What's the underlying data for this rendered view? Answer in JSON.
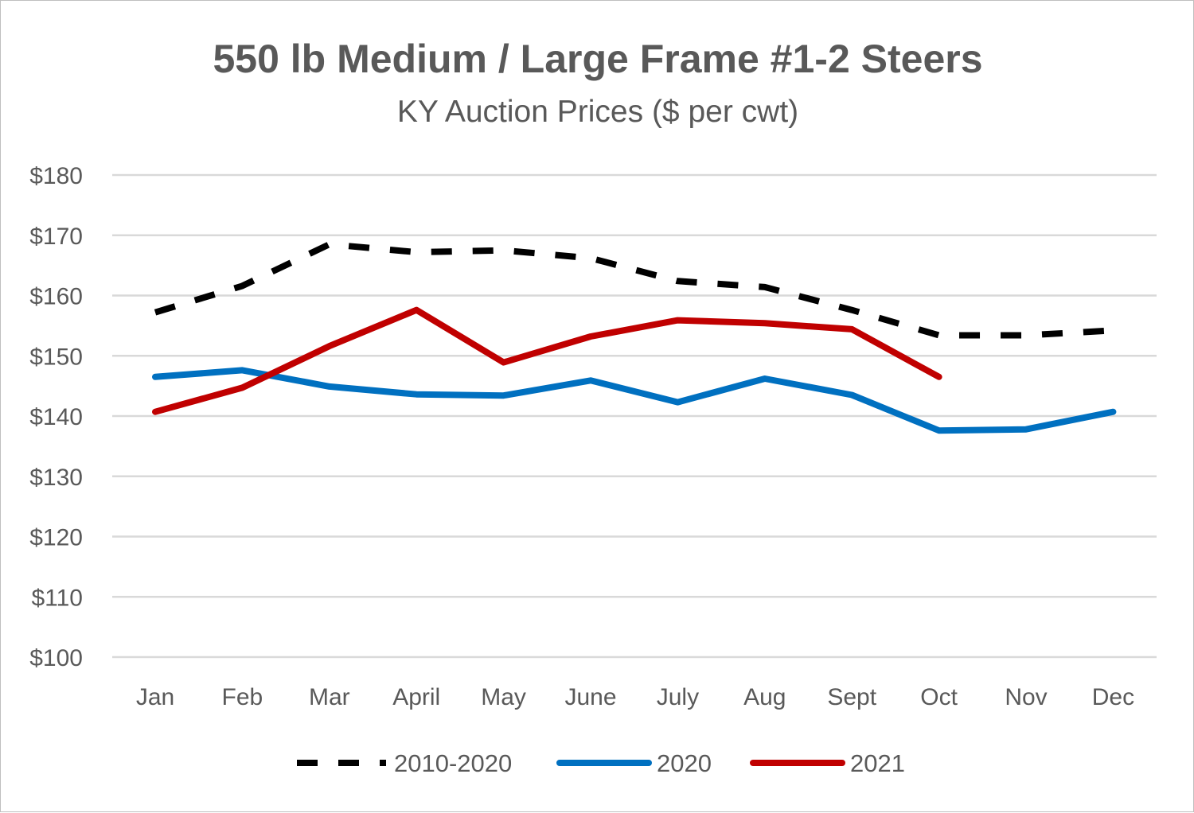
{
  "chart_data": {
    "type": "line",
    "title": "550 lb Medium / Large Frame #1-2 Steers",
    "subtitle": "KY Auction Prices ($ per cwt)",
    "xlabel": "",
    "ylabel": "",
    "categories": [
      "Jan",
      "Feb",
      "Mar",
      "April",
      "May",
      "June",
      "July",
      "Aug",
      "Sept",
      "Oct",
      "Nov",
      "Dec"
    ],
    "ylim": [
      100,
      180
    ],
    "yticks": [
      100,
      110,
      120,
      130,
      140,
      150,
      160,
      170,
      180
    ],
    "ytick_labels": [
      "$100",
      "$110",
      "$120",
      "$130",
      "$140",
      "$150",
      "$160",
      "$170",
      "$180"
    ],
    "grid": true,
    "legend_position": "bottom",
    "series": [
      {
        "name": "2010-2020",
        "color": "#000000",
        "style": "dashed",
        "values": [
          157.2,
          161.6,
          168.5,
          167.2,
          167.5,
          166.2,
          162.4,
          161.4,
          157.6,
          153.4,
          153.4,
          154.2
        ]
      },
      {
        "name": "2020",
        "color": "#0070c0",
        "style": "solid",
        "values": [
          146.5,
          147.6,
          144.9,
          143.6,
          143.4,
          145.9,
          142.3,
          146.2,
          143.5,
          137.6,
          137.8,
          140.7
        ]
      },
      {
        "name": "2021",
        "color": "#c00000",
        "style": "solid",
        "values": [
          140.7,
          144.7,
          151.6,
          157.6,
          148.9,
          153.2,
          155.9,
          155.4,
          154.4,
          146.5,
          null,
          null
        ]
      }
    ]
  }
}
